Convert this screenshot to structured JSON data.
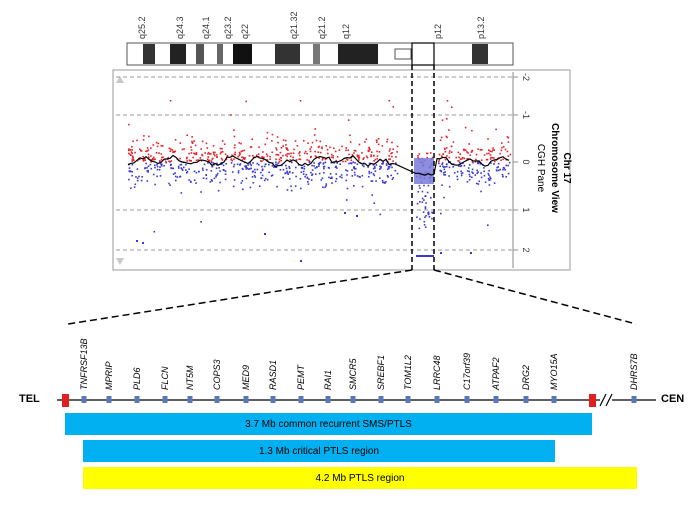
{
  "chromosome": {
    "band_labels": [
      "q25.2",
      "q24.3",
      "q24.1",
      "q23.2",
      "q22",
      "q21.32",
      "q21.2",
      "q12",
      "p12",
      "p13.2"
    ]
  },
  "chart": {
    "title_lines": [
      "Chr 17",
      "Chromosome View",
      "CGH Pane"
    ],
    "y_ticks": [
      "-2",
      "-1",
      "0",
      "1",
      "2"
    ],
    "colors": {
      "gain": "#e8222a",
      "loss": "#3a3ad0",
      "trend": "#000000",
      "highlight": "#7a7ad8"
    }
  },
  "map": {
    "left_label": "TEL",
    "right_label": "CEN",
    "genes": [
      "TNFRSF13B",
      "MPRIP",
      "PLD6",
      "FLCN",
      "NT5M",
      "COPS3",
      "MED9",
      "RASD1",
      "PEMT",
      "RAI1",
      "SMCR5",
      "SREBF1",
      "TOM1L2",
      "LRRC48",
      "C17orf39",
      "ATPAF2",
      "DRG2",
      "MYO15A",
      "DHRS7B"
    ]
  },
  "regions": [
    {
      "label": "3.7 Mb common recurrent SMS/PTLS",
      "color": "#00b0f0"
    },
    {
      "label": "1.3 Mb critical PTLS region",
      "color": "#00b0f0"
    },
    {
      "label": "4.2 Mb PTLS region",
      "color": "#ffff00"
    }
  ]
}
